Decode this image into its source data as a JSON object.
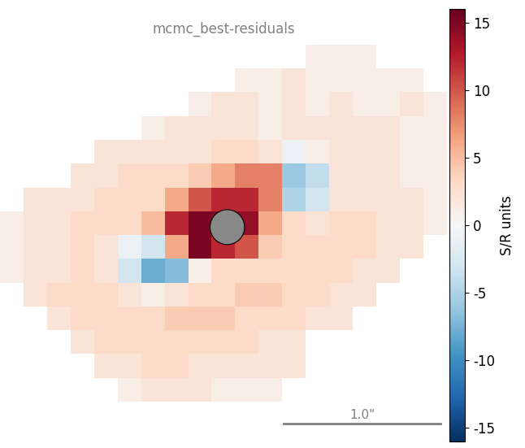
{
  "chart_data": {
    "type": "heatmap",
    "title": "mcmc_best-residuals",
    "tick_labels": false,
    "extent": [
      -1.45,
      1.4,
      -1.1,
      1.15
    ],
    "xlim": [
      -1.45,
      1.4
    ],
    "ylim": [
      -1.3,
      1.15
    ],
    "cells": [
      [
        null,
        null,
        null,
        null,
        null,
        null,
        null,
        null,
        null,
        null,
        null,
        null,
        null,
        1,
        1,
        1,
        null,
        null,
        null
      ],
      [
        null,
        null,
        null,
        null,
        null,
        null,
        null,
        null,
        null,
        null,
        1,
        1,
        2,
        1,
        1,
        1,
        1,
        1,
        null
      ],
      [
        null,
        null,
        null,
        null,
        null,
        null,
        null,
        null,
        1,
        2,
        2,
        1,
        2,
        1,
        2,
        1,
        1,
        2,
        1
      ],
      [
        null,
        null,
        null,
        null,
        null,
        null,
        1,
        2,
        2,
        2,
        2,
        1,
        2,
        2,
        2,
        2,
        2,
        1,
        1
      ],
      [
        null,
        null,
        null,
        null,
        2,
        2,
        2,
        2,
        2,
        3,
        3,
        2,
        -1,
        1,
        2,
        2,
        2,
        1,
        1
      ],
      [
        null,
        null,
        null,
        2,
        2,
        3,
        3,
        3,
        4,
        6,
        8,
        8,
        -6,
        -4,
        2,
        2,
        2,
        1,
        1
      ],
      [
        null,
        2,
        2,
        2,
        3,
        3,
        3,
        6,
        10,
        12,
        12,
        8,
        -5,
        -3,
        2,
        2,
        2,
        2,
        1
      ],
      [
        1,
        2,
        2,
        3,
        3,
        3,
        5,
        12,
        15,
        15,
        14,
        6,
        3,
        2,
        3,
        3,
        2,
        2,
        1
      ],
      [
        1,
        2,
        2,
        3,
        2,
        -1,
        -3,
        6,
        15,
        12,
        10,
        4,
        3,
        3,
        3,
        3,
        2,
        2,
        null
      ],
      [
        1,
        2,
        2,
        3,
        2,
        -3,
        -8,
        -7,
        1,
        3,
        3,
        3,
        3,
        3,
        3,
        2,
        2,
        null,
        null
      ],
      [
        null,
        2,
        3,
        3,
        3,
        2,
        1,
        2,
        3,
        3,
        4,
        4,
        3,
        3,
        2,
        2,
        null,
        null,
        null
      ],
      [
        null,
        null,
        2,
        3,
        3,
        3,
        3,
        4,
        4,
        4,
        3,
        3,
        3,
        2,
        2,
        null,
        null,
        null,
        null
      ],
      [
        null,
        null,
        null,
        2,
        3,
        3,
        3,
        3,
        3,
        3,
        3,
        2,
        2,
        null,
        null,
        null,
        null,
        null,
        null
      ],
      [
        null,
        null,
        null,
        null,
        2,
        2,
        3,
        3,
        2,
        2,
        2,
        2,
        2,
        null,
        null,
        null,
        null,
        null,
        null
      ],
      [
        null,
        null,
        null,
        null,
        null,
        1,
        2,
        2,
        2,
        1,
        1,
        1,
        null,
        null,
        null,
        null,
        null,
        null,
        null
      ]
    ],
    "coronagraph_radius": 0.11,
    "scale_bar": {
      "length": 1.0,
      "label": "1.0\""
    },
    "colorbar": {
      "label": "S/R units",
      "range": [
        -16,
        16
      ],
      "ticks": [
        -15,
        -10,
        -5,
        0,
        5,
        10,
        15
      ]
    }
  }
}
